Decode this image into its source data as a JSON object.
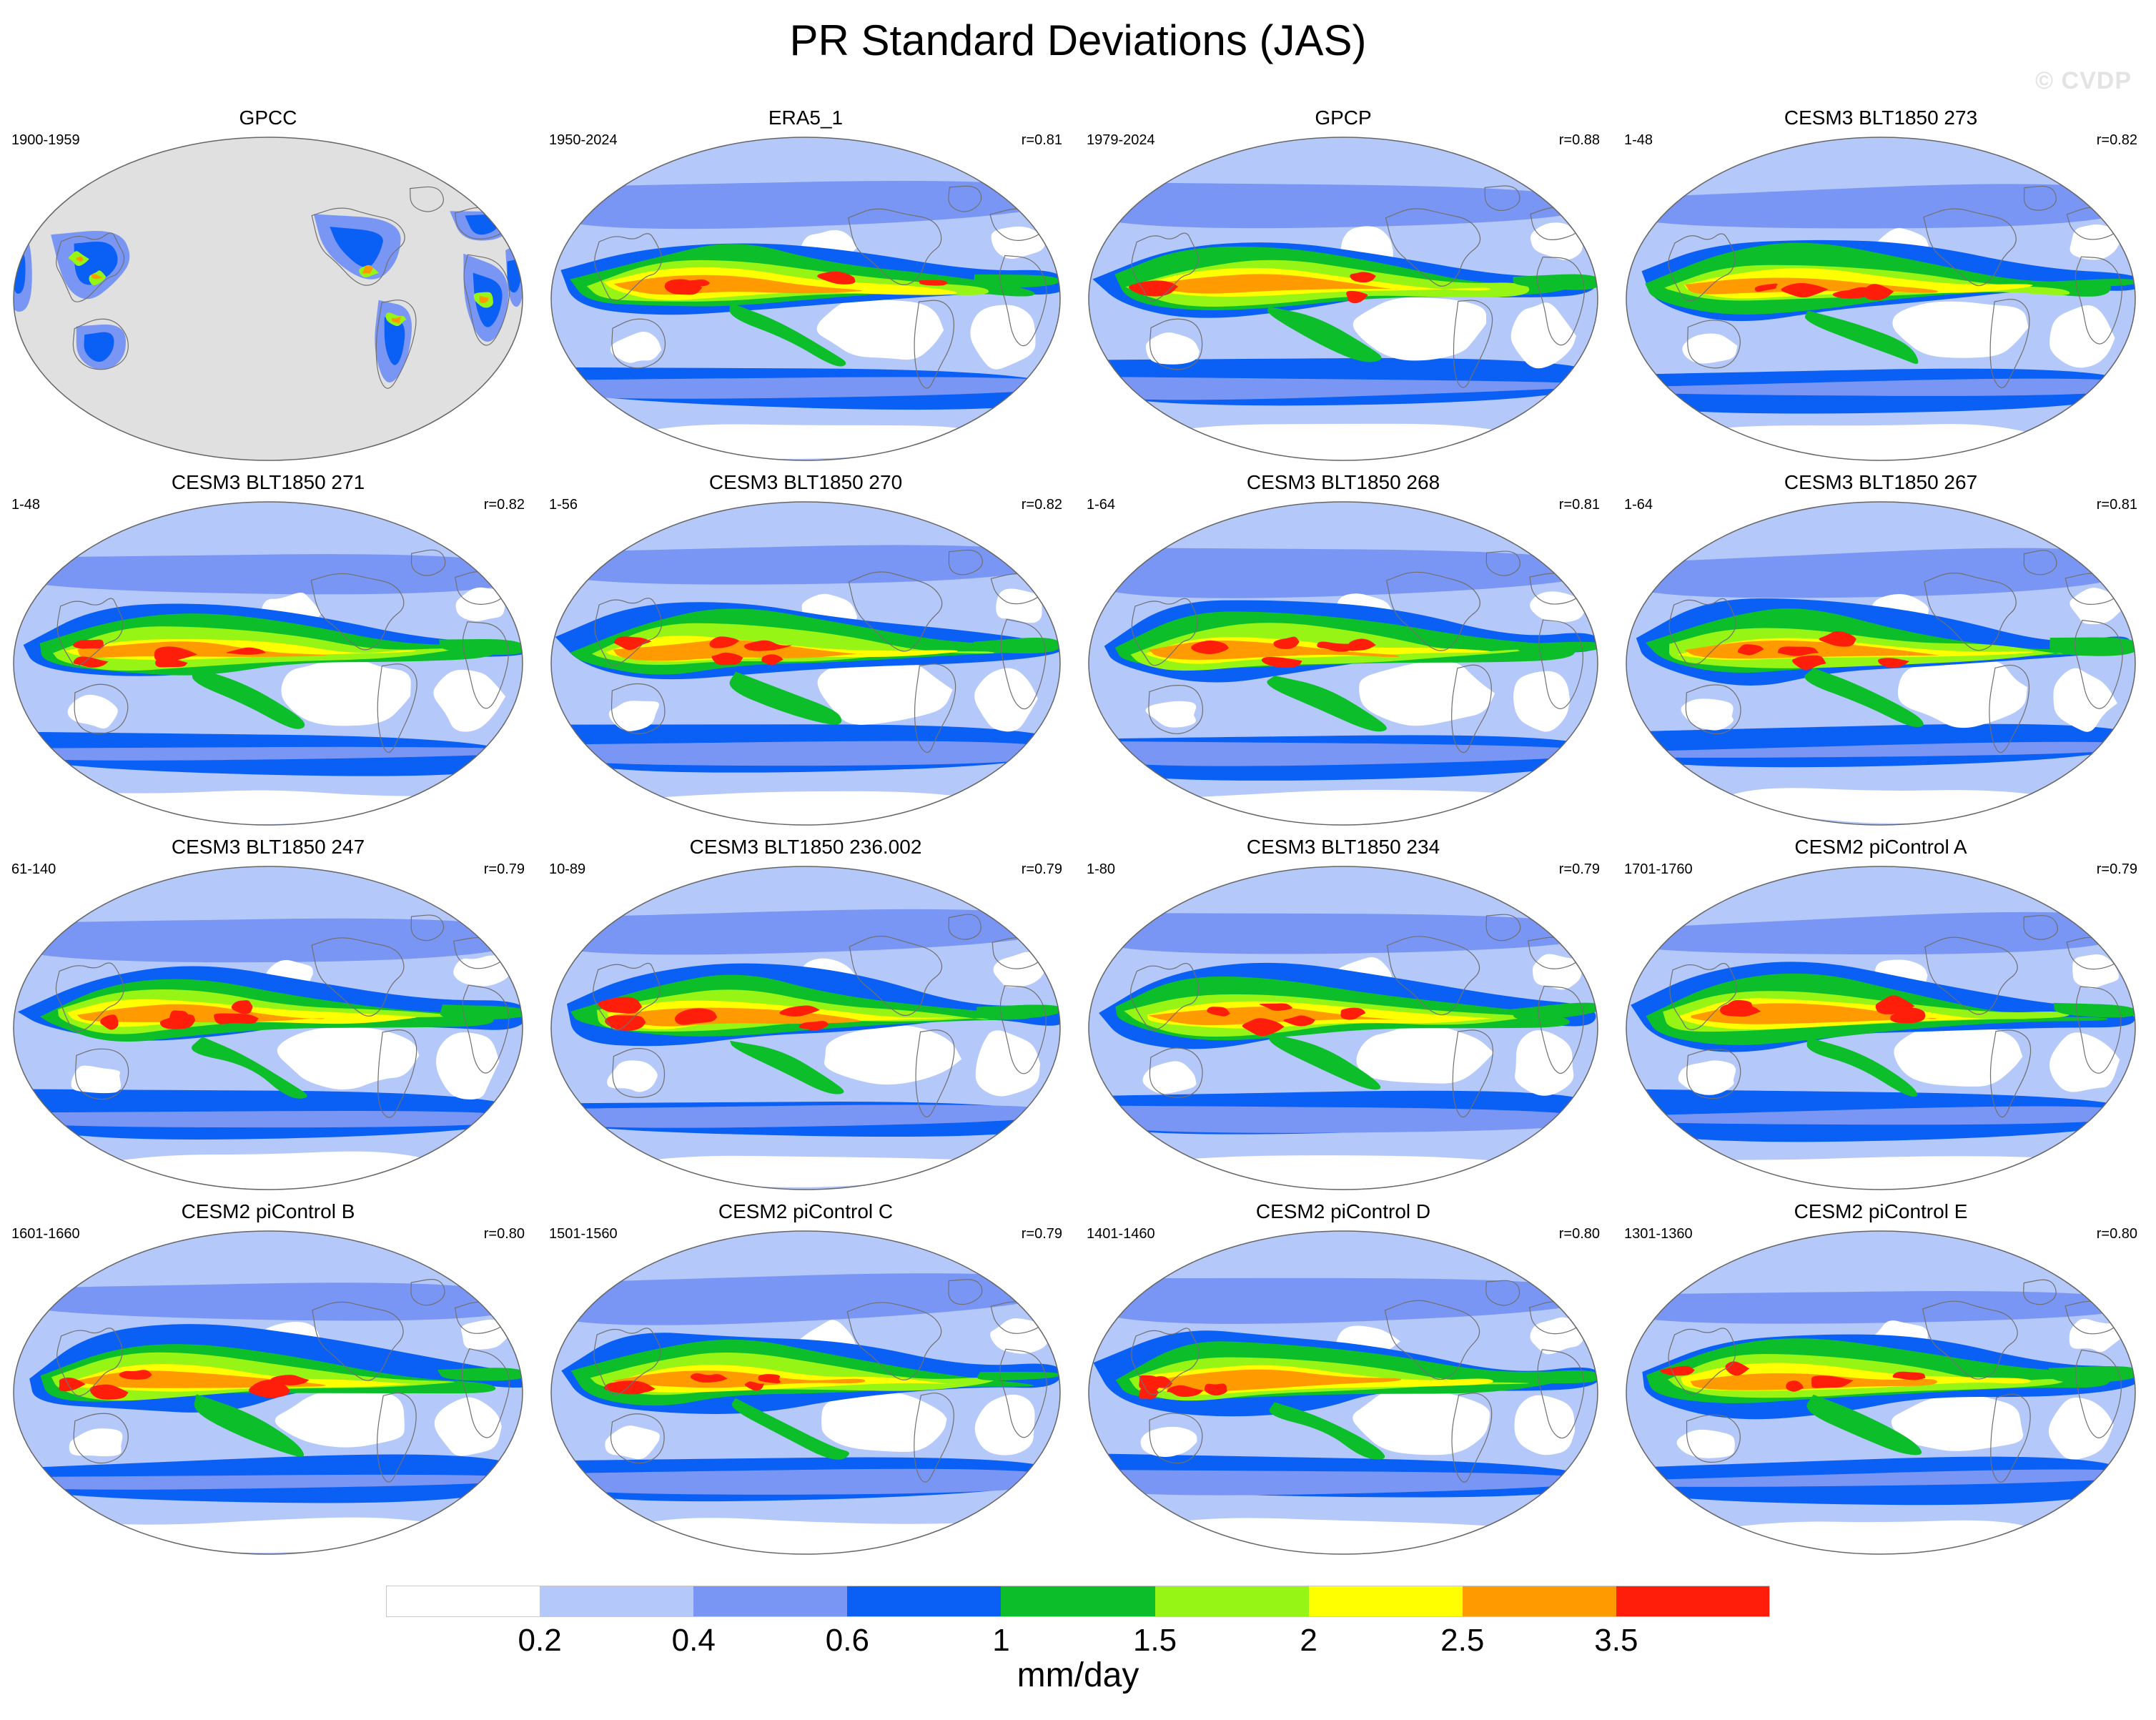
{
  "title": "PR Standard Deviations (JAS)",
  "watermark": "© CVDP",
  "panels": [
    {
      "title": "GPCC",
      "years": "1900-1959",
      "r": "",
      "kind": "obs"
    },
    {
      "title": "ERA5_1",
      "years": "1950-2024",
      "r": "r=0.81",
      "kind": "reanalysis"
    },
    {
      "title": "GPCP",
      "years": "1979-2024",
      "r": "r=0.88",
      "kind": "reanalysis"
    },
    {
      "title": "CESM3 BLT1850 273",
      "years": "1-48",
      "r": "r=0.82",
      "kind": "model"
    },
    {
      "title": "CESM3 BLT1850 271",
      "years": "1-48",
      "r": "r=0.82",
      "kind": "model"
    },
    {
      "title": "CESM3 BLT1850 270",
      "years": "1-56",
      "r": "r=0.82",
      "kind": "model"
    },
    {
      "title": "CESM3 BLT1850 268",
      "years": "1-64",
      "r": "r=0.81",
      "kind": "model"
    },
    {
      "title": "CESM3 BLT1850 267",
      "years": "1-64",
      "r": "r=0.81",
      "kind": "model"
    },
    {
      "title": "CESM3 BLT1850 247",
      "years": "61-140",
      "r": "r=0.79",
      "kind": "model"
    },
    {
      "title": "CESM3 BLT1850 236.002",
      "years": "10-89",
      "r": "r=0.79",
      "kind": "model"
    },
    {
      "title": "CESM3 BLT1850 234",
      "years": "1-80",
      "r": "r=0.79",
      "kind": "model"
    },
    {
      "title": "CESM2 piControl A",
      "years": "1701-1760",
      "r": "r=0.79",
      "kind": "model"
    },
    {
      "title": "CESM2 piControl B",
      "years": "1601-1660",
      "r": "r=0.80",
      "kind": "model"
    },
    {
      "title": "CESM2 piControl C",
      "years": "1501-1560",
      "r": "r=0.79",
      "kind": "model"
    },
    {
      "title": "CESM2 piControl D",
      "years": "1401-1460",
      "r": "r=0.80",
      "kind": "model"
    },
    {
      "title": "CESM2 piControl E",
      "years": "1301-1360",
      "r": "r=0.80",
      "kind": "model"
    }
  ],
  "colorbar": {
    "labels": [
      "0.2",
      "0.4",
      "0.6",
      "1",
      "1.5",
      "2",
      "2.5",
      "3.5"
    ],
    "colors": [
      "#ffffff",
      "#b4c8fa",
      "#7a96f5",
      "#0a5ff5",
      "#0cbe2a",
      "#96f514",
      "#ffff00",
      "#ff9b00",
      "#ff1e0a"
    ],
    "units": "mm/day"
  },
  "colors": {
    "land_missing": "#e0e0e0",
    "coastline": "#707070",
    "map_border": "#666666"
  }
}
